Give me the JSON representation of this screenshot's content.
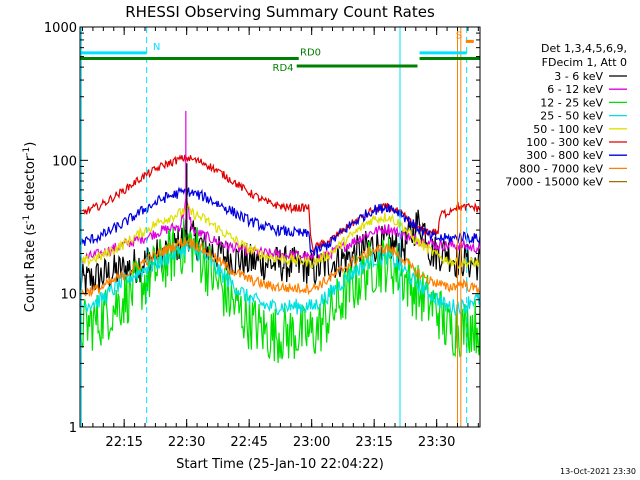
{
  "chart_data": {
    "type": "line",
    "title": "RHESSI Observing Summary Count Rates",
    "xlabel": "Start Time (25-Jan-10 22:04:22)",
    "ylabel_main": "Count Rate (s",
    "ylabel_exp1": "-1",
    "ylabel_mid": " detector",
    "ylabel_exp2": "-1",
    "ylabel_end": ")",
    "y_scale": "log",
    "ylim": [
      1,
      1000
    ],
    "x_unit": "minutes since 22:04:22",
    "xlim": [
      0,
      96
    ],
    "x_ticks": [
      {
        "t": 10.6,
        "label": "22:15"
      },
      {
        "t": 25.6,
        "label": "22:30"
      },
      {
        "t": 40.6,
        "label": "22:45"
      },
      {
        "t": 55.6,
        "label": "23:00"
      },
      {
        "t": 70.6,
        "label": "23:15"
      },
      {
        "t": 85.6,
        "label": "23:30"
      }
    ],
    "y_ticks": [
      {
        "v": 1,
        "label": "1"
      },
      {
        "v": 10,
        "label": "10"
      },
      {
        "v": 100,
        "label": "100"
      },
      {
        "v": 1000,
        "label": "1000"
      }
    ],
    "legend_header": [
      "Det 1,3,4,5,6,9,",
      "FDecim 1, Att 0"
    ],
    "series": [
      {
        "name": "3 - 6 keV",
        "color": "#000000",
        "noise": 0.14,
        "points": [
          [
            0,
            12
          ],
          [
            5,
            13.5
          ],
          [
            10,
            15
          ],
          [
            15,
            17
          ],
          [
            20,
            20
          ],
          [
            24,
            24
          ],
          [
            25.5,
            30
          ],
          [
            27,
            26
          ],
          [
            30,
            22
          ],
          [
            35,
            19
          ],
          [
            40,
            17.5
          ],
          [
            45,
            17
          ],
          [
            50,
            16.5
          ],
          [
            54,
            16
          ],
          [
            56,
            15
          ],
          [
            60,
            17
          ],
          [
            65,
            19
          ],
          [
            70,
            23
          ],
          [
            74,
            24
          ],
          [
            77,
            21
          ],
          [
            79,
            26
          ],
          [
            81,
            34
          ],
          [
            83,
            30
          ],
          [
            84,
            21
          ],
          [
            86,
            20
          ],
          [
            88,
            21
          ],
          [
            90,
            18
          ],
          [
            92,
            18
          ],
          [
            94,
            17
          ],
          [
            96,
            17
          ]
        ]
      },
      {
        "name": "6 - 12 keV",
        "color": "#e000e0",
        "noise": 0.04,
        "points": [
          [
            0,
            18
          ],
          [
            5,
            20
          ],
          [
            10,
            23
          ],
          [
            15,
            26
          ],
          [
            20,
            30
          ],
          [
            24,
            32
          ],
          [
            25.5,
            50
          ],
          [
            27,
            30
          ],
          [
            30,
            27
          ],
          [
            35,
            23
          ],
          [
            40,
            21
          ],
          [
            45,
            20
          ],
          [
            50,
            19.5
          ],
          [
            54,
            19
          ],
          [
            56,
            18
          ],
          [
            60,
            20
          ],
          [
            65,
            24
          ],
          [
            70,
            29
          ],
          [
            74,
            31
          ],
          [
            77,
            28
          ],
          [
            80,
            26
          ],
          [
            84,
            24
          ],
          [
            86,
            23
          ],
          [
            90,
            23
          ],
          [
            92,
            23
          ],
          [
            94,
            22
          ],
          [
            96,
            22
          ]
        ]
      },
      {
        "name": "12 - 25 keV",
        "color": "#00e000",
        "noise": 0.22,
        "points": [
          [
            0,
            5.5
          ],
          [
            5,
            6.5
          ],
          [
            10,
            9
          ],
          [
            15,
            12
          ],
          [
            20,
            17
          ],
          [
            24,
            22
          ],
          [
            26,
            24
          ],
          [
            28,
            21
          ],
          [
            30,
            17
          ],
          [
            33,
            12
          ],
          [
            36,
            9
          ],
          [
            40,
            6.5
          ],
          [
            45,
            5
          ],
          [
            50,
            5
          ],
          [
            54,
            5
          ],
          [
            56,
            5
          ],
          [
            60,
            7
          ],
          [
            65,
            11
          ],
          [
            70,
            16
          ],
          [
            74,
            17
          ],
          [
            77,
            14
          ],
          [
            80,
            11
          ],
          [
            84,
            8.5
          ],
          [
            86,
            7.5
          ],
          [
            88,
            5.5
          ],
          [
            92,
            5.5
          ],
          [
            94,
            6
          ],
          [
            96,
            5.5
          ]
        ]
      },
      {
        "name": "25 - 50 keV",
        "color": "#00e0e0",
        "noise": 0.06,
        "points": [
          [
            0,
            8
          ],
          [
            5,
            9
          ],
          [
            10,
            12
          ],
          [
            15,
            15
          ],
          [
            20,
            18
          ],
          [
            24,
            21
          ],
          [
            26,
            22
          ],
          [
            30,
            19
          ],
          [
            35,
            13
          ],
          [
            40,
            9.5
          ],
          [
            45,
            8
          ],
          [
            50,
            8
          ],
          [
            54,
            8
          ],
          [
            56,
            8
          ],
          [
            60,
            10
          ],
          [
            65,
            14
          ],
          [
            70,
            18
          ],
          [
            74,
            19
          ],
          [
            77,
            16
          ],
          [
            80,
            12.5
          ],
          [
            84,
            10
          ],
          [
            86,
            9
          ],
          [
            88,
            8
          ],
          [
            92,
            8
          ],
          [
            94,
            9
          ],
          [
            96,
            9
          ]
        ]
      },
      {
        "name": "50 - 100 keV",
        "color": "#e0e000",
        "noise": 0.04,
        "points": [
          [
            0,
            17
          ],
          [
            5,
            19
          ],
          [
            10,
            23
          ],
          [
            15,
            29
          ],
          [
            20,
            36
          ],
          [
            24,
            40
          ],
          [
            25.5,
            44
          ],
          [
            27,
            40
          ],
          [
            30,
            36
          ],
          [
            35,
            28
          ],
          [
            40,
            22
          ],
          [
            45,
            19
          ],
          [
            50,
            18
          ],
          [
            54,
            17.5
          ],
          [
            56,
            17
          ],
          [
            60,
            20
          ],
          [
            65,
            27
          ],
          [
            70,
            36
          ],
          [
            74,
            38
          ],
          [
            77,
            33
          ],
          [
            80,
            26
          ],
          [
            84,
            21
          ],
          [
            86,
            19
          ],
          [
            90,
            17
          ],
          [
            92,
            17
          ],
          [
            94,
            17
          ],
          [
            96,
            17
          ]
        ]
      },
      {
        "name": "100 - 300 keV",
        "color": "#e00000",
        "noise": 0.03,
        "points": [
          [
            0,
            40
          ],
          [
            5,
            46
          ],
          [
            10,
            58
          ],
          [
            15,
            75
          ],
          [
            20,
            92
          ],
          [
            24,
            102
          ],
          [
            26,
            104
          ],
          [
            30,
            95
          ],
          [
            35,
            76
          ],
          [
            40,
            59
          ],
          [
            45,
            48
          ],
          [
            50,
            44
          ],
          [
            54,
            44
          ],
          [
            55,
            45
          ],
          [
            55.3,
            26
          ],
          [
            56,
            22
          ],
          [
            60,
            25
          ],
          [
            65,
            33
          ],
          [
            70,
            42
          ],
          [
            74,
            45
          ],
          [
            77,
            40
          ],
          [
            80,
            33
          ],
          [
            82,
            30
          ],
          [
            84,
            29
          ],
          [
            86,
            29
          ],
          [
            86.5,
            40
          ],
          [
            88,
            40
          ],
          [
            90,
            45
          ],
          [
            92,
            44
          ],
          [
            94,
            45
          ],
          [
            96,
            43
          ]
        ]
      },
      {
        "name": "300 - 800 keV",
        "color": "#0000e0",
        "noise": 0.04,
        "points": [
          [
            0,
            24
          ],
          [
            5,
            27
          ],
          [
            10,
            33
          ],
          [
            15,
            42
          ],
          [
            20,
            52
          ],
          [
            24,
            57
          ],
          [
            26,
            58
          ],
          [
            30,
            53
          ],
          [
            35,
            44
          ],
          [
            40,
            36
          ],
          [
            45,
            31
          ],
          [
            50,
            29
          ],
          [
            54,
            28
          ],
          [
            55,
            28
          ],
          [
            55.3,
            22
          ],
          [
            56,
            20
          ],
          [
            60,
            24
          ],
          [
            65,
            33
          ],
          [
            70,
            42
          ],
          [
            74,
            45
          ],
          [
            77,
            40
          ],
          [
            80,
            33
          ],
          [
            84,
            27
          ],
          [
            86,
            26
          ],
          [
            90,
            26
          ],
          [
            92,
            27
          ],
          [
            94,
            26
          ],
          [
            96,
            26
          ]
        ]
      },
      {
        "name": "800 - 7000 keV",
        "color": "#ff8000",
        "noise": 0.04,
        "points": [
          [
            0,
            10
          ],
          [
            5,
            11
          ],
          [
            10,
            13.5
          ],
          [
            15,
            17
          ],
          [
            20,
            21
          ],
          [
            24,
            24
          ],
          [
            26,
            25
          ],
          [
            30,
            21
          ],
          [
            35,
            16
          ],
          [
            40,
            13
          ],
          [
            45,
            11.5
          ],
          [
            50,
            11
          ],
          [
            54,
            11
          ],
          [
            56,
            11
          ],
          [
            60,
            13
          ],
          [
            65,
            17
          ],
          [
            70,
            21
          ],
          [
            74,
            22
          ],
          [
            77,
            19
          ],
          [
            80,
            15
          ],
          [
            84,
            12.5
          ],
          [
            86,
            12
          ],
          [
            88,
            11
          ],
          [
            90,
            11.5
          ],
          [
            92,
            12
          ],
          [
            94,
            11
          ],
          [
            96,
            11
          ]
        ]
      },
      {
        "name": "7000 - 15000 keV",
        "color": "#a07000",
        "noise": 0.0,
        "points": []
      }
    ],
    "peak_spike": {
      "t": 25.4,
      "magenta": 235,
      "black": 95
    },
    "flags": [
      {
        "name": "N",
        "color": "#00e0ff",
        "level": 640,
        "segments": [
          [
            0,
            16
          ]
        ],
        "label_t": 17.5
      },
      {
        "name": "N",
        "color": "#00e0ff",
        "level": 640,
        "segments": [
          [
            81.5,
            92.8
          ]
        ],
        "label_t": null
      },
      {
        "name": "S",
        "color": "#ff8000",
        "level": 780,
        "segments": [
          [
            92.6,
            94.5
          ]
        ],
        "label_t": 90.2
      },
      {
        "name": "RD0",
        "color": "#008000",
        "level": 580,
        "segments": [
          [
            0,
            52.5
          ],
          [
            81.5,
            96
          ]
        ],
        "label_t": 52.8
      },
      {
        "name": "RD4",
        "color": "#008000",
        "level": 510,
        "segments": [
          [
            52,
            81
          ]
        ],
        "label_t": 46.2
      }
    ],
    "vlines": [
      {
        "t": 0.3,
        "color": "#00e0ff",
        "style": "solid"
      },
      {
        "t": 16,
        "color": "#00e0ff",
        "style": "dash"
      },
      {
        "t": 76.8,
        "color": "#00e0ff",
        "style": "solid"
      },
      {
        "t": 92.8,
        "color": "#00e0ff",
        "style": "dash"
      },
      {
        "t": 90.6,
        "color": "#ff8000",
        "style": "solid"
      },
      {
        "t": 91.4,
        "color": "#ff8000",
        "style": "solid"
      }
    ],
    "timestamp": "13-Oct-2021 23:30"
  }
}
